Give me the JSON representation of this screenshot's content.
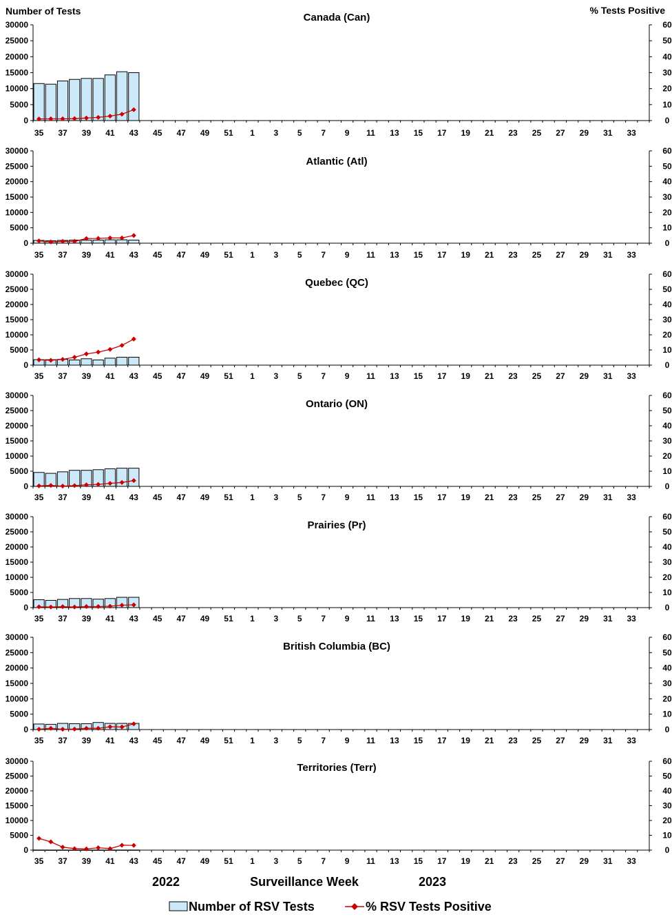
{
  "header": {
    "left_label": "Number of Tests",
    "right_label": "%  Tests Positive"
  },
  "footer": {
    "year_left": "2022",
    "xlabel": "Surveillance Week",
    "year_right": "2023"
  },
  "legend": {
    "bar_label": "Number of RSV Tests",
    "line_label": "% RSV Tests Positive"
  },
  "colors": {
    "bar_fill": "#cce9f9",
    "bar_stroke": "#000000",
    "line": "#cc0000"
  },
  "chart_data": [
    {
      "type": "bar",
      "title": "Canada (Can)",
      "week_labels": [
        "35",
        "37",
        "39",
        "41",
        "43",
        "45",
        "47",
        "49",
        "51",
        "1",
        "3",
        "5",
        "7",
        "9",
        "11",
        "13",
        "15",
        "17",
        "19",
        "21",
        "23",
        "25",
        "27",
        "29",
        "31",
        "33"
      ],
      "left_ticks": [
        "30000",
        "25000",
        "20000",
        "15000",
        "10000",
        "5000",
        "0"
      ],
      "right_ticks": [
        "60",
        "50",
        "40",
        "30",
        "20",
        "10",
        "0"
      ],
      "left_ylim": [
        0,
        30000
      ],
      "right_ylim": [
        0,
        60
      ],
      "categories": [
        35,
        36,
        37,
        38,
        39,
        40,
        41,
        42,
        43
      ],
      "series": [
        {
          "name": "Number of RSV Tests",
          "axis": "left",
          "values": [
            11600,
            11400,
            12400,
            12900,
            13200,
            13200,
            14300,
            15300,
            15000
          ]
        },
        {
          "name": "% RSV Tests Positive",
          "axis": "right",
          "values": [
            1.0,
            1.1,
            1.1,
            1.2,
            1.6,
            2.0,
            2.8,
            4.0,
            6.8
          ]
        }
      ]
    },
    {
      "type": "bar",
      "title": "Atlantic (Atl)",
      "week_labels": [
        "35",
        "37",
        "39",
        "41",
        "43",
        "45",
        "47",
        "49",
        "51",
        "1",
        "3",
        "5",
        "7",
        "9",
        "11",
        "13",
        "15",
        "17",
        "19",
        "21",
        "23",
        "25",
        "27",
        "29",
        "31",
        "33"
      ],
      "left_ticks": [
        "30000",
        "25000",
        "20000",
        "15000",
        "10000",
        "5000",
        "0"
      ],
      "right_ticks": [
        "60",
        "50",
        "40",
        "30",
        "20",
        "10",
        "0"
      ],
      "left_ylim": [
        0,
        30000
      ],
      "right_ylim": [
        0,
        60
      ],
      "categories": [
        35,
        36,
        37,
        38,
        39,
        40,
        41,
        42,
        43
      ],
      "series": [
        {
          "name": "Number of RSV Tests",
          "axis": "left",
          "values": [
            900,
            800,
            900,
            1000,
            1000,
            1000,
            1100,
            1100,
            1000
          ]
        },
        {
          "name": "% RSV Tests Positive",
          "axis": "right",
          "values": [
            1.5,
            0.8,
            1.2,
            1.2,
            3.0,
            3.1,
            3.4,
            3.4,
            5.0
          ]
        }
      ]
    },
    {
      "type": "bar",
      "title": "Quebec (QC)",
      "week_labels": [
        "35",
        "37",
        "39",
        "41",
        "43",
        "45",
        "47",
        "49",
        "51",
        "1",
        "3",
        "5",
        "7",
        "9",
        "11",
        "13",
        "15",
        "17",
        "19",
        "21",
        "23",
        "25",
        "27",
        "29",
        "31",
        "33"
      ],
      "left_ticks": [
        "30000",
        "25000",
        "20000",
        "15000",
        "10000",
        "5000",
        "0"
      ],
      "right_ticks": [
        "60",
        "50",
        "40",
        "30",
        "20",
        "10",
        "0"
      ],
      "left_ylim": [
        0,
        30000
      ],
      "right_ylim": [
        0,
        60
      ],
      "categories": [
        35,
        36,
        37,
        38,
        39,
        40,
        41,
        42,
        43
      ],
      "series": [
        {
          "name": "Number of RSV Tests",
          "axis": "left",
          "values": [
            1800,
            1800,
            1900,
            1700,
            2100,
            1700,
            2300,
            2600,
            2600
          ]
        },
        {
          "name": "% RSV Tests Positive",
          "axis": "right",
          "values": [
            3.5,
            3.2,
            3.8,
            5.2,
            7.4,
            8.6,
            10.4,
            13.0,
            17.2
          ]
        }
      ]
    },
    {
      "type": "bar",
      "title": "Ontario (ON)",
      "week_labels": [
        "35",
        "37",
        "39",
        "41",
        "43",
        "45",
        "47",
        "49",
        "51",
        "1",
        "3",
        "5",
        "7",
        "9",
        "11",
        "13",
        "15",
        "17",
        "19",
        "21",
        "23",
        "25",
        "27",
        "29",
        "31",
        "33"
      ],
      "left_ticks": [
        "30000",
        "25000",
        "20000",
        "15000",
        "10000",
        "5000",
        "0"
      ],
      "right_ticks": [
        "60",
        "50",
        "40",
        "30",
        "20",
        "10",
        "0"
      ],
      "left_ylim": [
        0,
        30000
      ],
      "right_ylim": [
        0,
        60
      ],
      "categories": [
        35,
        36,
        37,
        38,
        39,
        40,
        41,
        42,
        43
      ],
      "series": [
        {
          "name": "Number of RSV Tests",
          "axis": "left",
          "values": [
            4600,
            4300,
            4800,
            5300,
            5300,
            5500,
            5800,
            6000,
            6000
          ]
        },
        {
          "name": "% RSV Tests Positive",
          "axis": "right",
          "values": [
            0.3,
            0.6,
            0.2,
            0.5,
            1.0,
            1.3,
            2.0,
            2.6,
            3.8
          ]
        }
      ]
    },
    {
      "type": "bar",
      "title": "Prairies (Pr)",
      "week_labels": [
        "35",
        "37",
        "39",
        "41",
        "43",
        "45",
        "47",
        "49",
        "51",
        "1",
        "3",
        "5",
        "7",
        "9",
        "11",
        "13",
        "15",
        "17",
        "19",
        "21",
        "23",
        "25",
        "27",
        "29",
        "31",
        "33"
      ],
      "left_ticks": [
        "30000",
        "25000",
        "20000",
        "15000",
        "10000",
        "5000",
        "0"
      ],
      "right_ticks": [
        "60",
        "50",
        "40",
        "30",
        "20",
        "10",
        "0"
      ],
      "left_ylim": [
        0,
        30000
      ],
      "right_ylim": [
        0,
        60
      ],
      "categories": [
        35,
        36,
        37,
        38,
        39,
        40,
        41,
        42,
        43
      ],
      "series": [
        {
          "name": "Number of RSV Tests",
          "axis": "left",
          "values": [
            2600,
            2400,
            2700,
            3000,
            3000,
            2800,
            3000,
            3400,
            3400
          ]
        },
        {
          "name": "% RSV Tests Positive",
          "axis": "right",
          "values": [
            0.5,
            0.4,
            0.6,
            0.4,
            0.7,
            0.7,
            0.9,
            1.6,
            1.8
          ]
        }
      ]
    },
    {
      "type": "bar",
      "title": "British Columbia (BC)",
      "week_labels": [
        "35",
        "37",
        "39",
        "41",
        "43",
        "45",
        "47",
        "49",
        "51",
        "1",
        "3",
        "5",
        "7",
        "9",
        "11",
        "13",
        "15",
        "17",
        "19",
        "21",
        "23",
        "25",
        "27",
        "29",
        "31",
        "33"
      ],
      "left_ticks": [
        "30000",
        "25000",
        "20000",
        "15000",
        "10000",
        "5000",
        "0"
      ],
      "right_ticks": [
        "60",
        "50",
        "40",
        "30",
        "20",
        "10",
        "0"
      ],
      "left_ylim": [
        0,
        30000
      ],
      "right_ylim": [
        0,
        60
      ],
      "categories": [
        35,
        36,
        37,
        38,
        39,
        40,
        41,
        42,
        43
      ],
      "series": [
        {
          "name": "Number of RSV Tests",
          "axis": "left",
          "values": [
            1800,
            1700,
            2000,
            1900,
            1900,
            2300,
            2000,
            2000,
            2000
          ]
        },
        {
          "name": "% RSV Tests Positive",
          "axis": "right",
          "values": [
            0.2,
            0.8,
            0.2,
            0.3,
            0.8,
            0.8,
            1.8,
            1.7,
            3.7
          ]
        }
      ]
    },
    {
      "type": "bar",
      "title": "Territories (Terr)",
      "week_labels": [
        "35",
        "37",
        "39",
        "41",
        "43",
        "45",
        "47",
        "49",
        "51",
        "1",
        "3",
        "5",
        "7",
        "9",
        "11",
        "13",
        "15",
        "17",
        "19",
        "21",
        "23",
        "25",
        "27",
        "29",
        "31",
        "33"
      ],
      "left_ticks": [
        "30000",
        "25000",
        "20000",
        "15000",
        "10000",
        "5000",
        "0"
      ],
      "right_ticks": [
        "60",
        "50",
        "40",
        "30",
        "20",
        "10",
        "0"
      ],
      "left_ylim": [
        0,
        30000
      ],
      "right_ylim": [
        0,
        60
      ],
      "categories": [
        35,
        36,
        37,
        38,
        39,
        40,
        41,
        42,
        43
      ],
      "series": [
        {
          "name": "Number of RSV Tests",
          "axis": "left",
          "values": [
            40,
            30,
            40,
            30,
            40,
            30,
            40,
            40,
            40
          ]
        },
        {
          "name": "% RSV Tests Positive",
          "axis": "right",
          "values": [
            7.9,
            5.6,
            2.0,
            1.0,
            0.8,
            1.6,
            1.0,
            3.3,
            3.2
          ]
        }
      ]
    }
  ]
}
